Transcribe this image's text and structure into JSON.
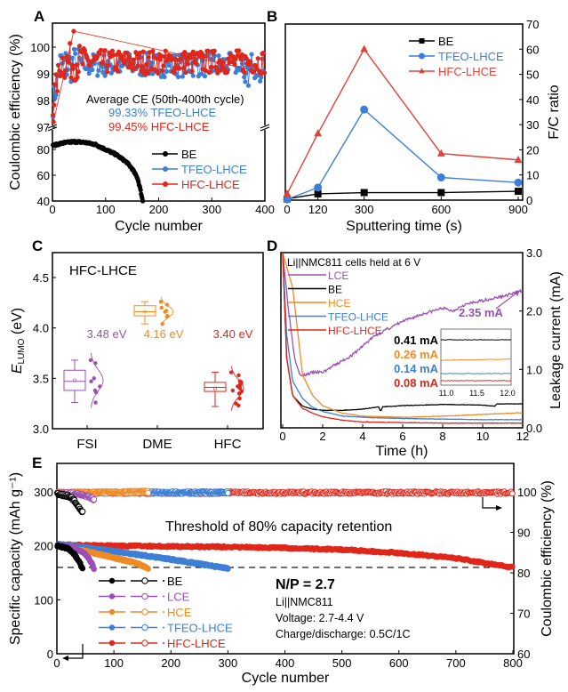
{
  "chart_data": [
    {
      "panel": "A",
      "type": "scatter",
      "xlabel": "Cycle number",
      "ylabel": "Coulombic efficiency (%)",
      "xlim": [
        0,
        400
      ],
      "xticks": [
        0,
        100,
        200,
        300,
        400
      ],
      "ylim_upper": [
        97,
        100.8
      ],
      "yticks_upper": [
        97,
        98,
        99,
        100
      ],
      "ylim_lower": [
        40,
        90
      ],
      "yticks_lower": [
        40,
        60,
        80
      ],
      "axis_break": true,
      "annotation_title": "Average CE  (50th-400th cycle)",
      "annotations": [
        {
          "text": "99.33%  TFEO-LHCE",
          "color": "#3d7fd6"
        },
        {
          "text": "99.45%  HFC-LHCE",
          "color": "#e0261a"
        }
      ],
      "legend": [
        "BE",
        "TFEO-LHCE",
        "HFC-LHCE"
      ],
      "legend_position": "lower-right",
      "series": [
        {
          "name": "BE",
          "color": "#000000",
          "description": "starts ~83%, rises to ~86% near cycle 40, declines to ~40% at cycle ~170",
          "x": [
            0,
            20,
            40,
            60,
            80,
            100,
            120,
            140,
            150,
            160,
            165,
            170
          ],
          "y": [
            83,
            85,
            86,
            85.5,
            84,
            80,
            76,
            70,
            65,
            58,
            50,
            40
          ]
        },
        {
          "name": "TFEO-LHCE",
          "color": "#3d7fd6",
          "description": "stabilizes near 99.3% after ~15 cycles",
          "average_ce": 99.33
        },
        {
          "name": "HFC-LHCE",
          "color": "#e0261a",
          "description": "stabilizes near 99.45% after ~15 cycles, max ~100.6 around cycle 40",
          "average_ce": 99.45
        }
      ]
    },
    {
      "panel": "B",
      "type": "line",
      "xlabel": "Sputtering time (s)",
      "ylabel": "F/C ratio",
      "xlim": [
        0,
        900
      ],
      "xticks": [
        0,
        120,
        300,
        600,
        900
      ],
      "ylim": [
        0,
        70
      ],
      "yticks": [
        0,
        10,
        20,
        30,
        40,
        50,
        60,
        70
      ],
      "legend_position": "top-right",
      "x": [
        0,
        120,
        300,
        600,
        900
      ],
      "series": [
        {
          "name": "BE",
          "color": "#000000",
          "marker": "square",
          "values": [
            0.5,
            2.5,
            3,
            3,
            3.5
          ]
        },
        {
          "name": "TFEO-LHCE",
          "color": "#3d7fd6",
          "marker": "circle",
          "values": [
            0.3,
            5,
            36,
            9,
            7
          ]
        },
        {
          "name": "HFC-LHCE",
          "color": "#e0423a",
          "marker": "triangle",
          "values": [
            2.5,
            26.5,
            60,
            18.5,
            16
          ]
        }
      ]
    },
    {
      "panel": "C",
      "type": "box",
      "title": "HFC-LHCE",
      "ylabel": "E_LUMO (eV)",
      "ylim": [
        3.0,
        4.75
      ],
      "yticks": [
        3.0,
        3.5,
        4.0,
        4.5
      ],
      "categories": [
        "FSI",
        "DME",
        "HFC"
      ],
      "series": [
        {
          "name": "FSI",
          "color": "#9b4fb5",
          "mean_label": "3.48 eV",
          "mean": 3.48,
          "min": 3.26,
          "q1": 3.38,
          "median": 3.47,
          "q3": 3.58,
          "max": 3.68,
          "points": [
            3.68,
            3.65,
            3.5,
            3.47,
            3.42,
            3.38,
            3.36,
            3.26
          ]
        },
        {
          "name": "DME",
          "color": "#f08a24",
          "mean_label": "4.16 eV",
          "mean": 4.16,
          "min": 4.04,
          "q1": 4.12,
          "median": 4.16,
          "q3": 4.22,
          "max": 4.26,
          "points": [
            4.26,
            4.23,
            4.2,
            4.17,
            4.16,
            4.12,
            4.11,
            4.04
          ]
        },
        {
          "name": "HFC",
          "color": "#e0261a",
          "mean_label": "3.40 eV",
          "mean": 3.4,
          "min": 3.22,
          "q1": 3.37,
          "median": 3.41,
          "q3": 3.46,
          "max": 3.56,
          "points": [
            3.56,
            3.53,
            3.47,
            3.46,
            3.45,
            3.44,
            3.42,
            3.41,
            3.4,
            3.38,
            3.37,
            3.35,
            3.3,
            3.25,
            3.23
          ]
        }
      ]
    },
    {
      "panel": "D",
      "type": "line",
      "xlabel": "Time (h)",
      "ylabel": "Leakage current (mA)",
      "xlim": [
        0,
        12
      ],
      "xticks": [
        0,
        2,
        4,
        6,
        8,
        10,
        12
      ],
      "ylim": [
        0,
        3.0
      ],
      "yticks": [
        0.0,
        1.0,
        2.0,
        3.0
      ],
      "annotation": "Li||NMC811 cells held at 6 V",
      "callout": {
        "text": "2.35 mA",
        "color": "#9b4fb5"
      },
      "legend_position": "top-left",
      "series": [
        {
          "name": "LCE",
          "color": "#9b4fb5",
          "x": [
            0,
            0.3,
            0.6,
            0.9,
            1.5,
            2,
            2.5,
            3,
            3.5,
            4,
            4.5,
            5,
            6,
            7,
            8,
            8.5,
            9,
            10,
            11,
            12
          ],
          "y": [
            3.0,
            2.0,
            1.2,
            0.88,
            0.95,
            0.95,
            1.05,
            1.15,
            1.25,
            1.4,
            1.55,
            1.65,
            1.82,
            1.95,
            2.05,
            2.0,
            2.1,
            2.18,
            2.25,
            2.35
          ]
        },
        {
          "name": "BE",
          "color": "#000000",
          "x": [
            0,
            0.2,
            0.5,
            1,
            1.5,
            2,
            3,
            4,
            4.8,
            4.9,
            5,
            6,
            8,
            10,
            10.6,
            10.7,
            12
          ],
          "y": [
            3.0,
            1.2,
            0.55,
            0.37,
            0.32,
            0.3,
            0.3,
            0.32,
            0.36,
            0.28,
            0.36,
            0.38,
            0.4,
            0.39,
            0.37,
            0.41,
            0.41
          ]
        },
        {
          "name": "HCE",
          "color": "#f08a24",
          "x": [
            0,
            0.5,
            0.8,
            1,
            1.5,
            2,
            3,
            4,
            6,
            8,
            10,
            12
          ],
          "y": [
            3.0,
            2.4,
            1.5,
            0.9,
            0.55,
            0.38,
            0.25,
            0.2,
            0.18,
            0.2,
            0.23,
            0.26
          ]
        },
        {
          "name": "TFEO-LHCE",
          "color": "#3d7fd6",
          "x": [
            0,
            0.2,
            0.5,
            1,
            1.5,
            2,
            3,
            4,
            6,
            8,
            10,
            12
          ],
          "y": [
            3.0,
            1.6,
            0.8,
            0.5,
            0.35,
            0.28,
            0.2,
            0.18,
            0.16,
            0.15,
            0.14,
            0.14
          ]
        },
        {
          "name": "HFC-LHCE",
          "color": "#e0261a",
          "x": [
            0,
            0.2,
            0.5,
            1,
            1.5,
            2,
            3,
            4,
            6,
            8,
            10,
            12
          ],
          "y": [
            3.0,
            1.2,
            0.55,
            0.33,
            0.25,
            0.19,
            0.13,
            0.1,
            0.09,
            0.08,
            0.08,
            0.08
          ]
        }
      ],
      "inset": {
        "xlim": [
          11.0,
          12.0
        ],
        "xticks": [
          11.0,
          11.5,
          12.0
        ],
        "labels": [
          {
            "text": "0.41 mA",
            "color": "#000000",
            "value": 0.41
          },
          {
            "text": "0.26 mA",
            "color": "#f08a24",
            "value": 0.26
          },
          {
            "text": "0.14 mA",
            "color": "#3d7fd6",
            "value": 0.14
          },
          {
            "text": "0.08 mA",
            "color": "#e0261a",
            "value": 0.08
          }
        ]
      }
    },
    {
      "panel": "E",
      "type": "scatter",
      "xlabel": "Cycle number",
      "ylabel": "Specific capacity (mAh g⁻¹)",
      "y2label": "Coulombic efficiency (%)",
      "xlim": [
        0,
        800
      ],
      "xticks": [
        0,
        100,
        200,
        300,
        400,
        500,
        600,
        700,
        800
      ],
      "ylim": [
        0,
        352
      ],
      "yticks": [
        0,
        100,
        200,
        300
      ],
      "y2lim": [
        60,
        104
      ],
      "y2ticks": [
        60,
        70,
        80,
        90,
        100
      ],
      "threshold_value": 160,
      "threshold_label": "Threshold of 80% capacity retention",
      "np_label": "N/P = 2.7",
      "conditions": [
        "Li||NMC811",
        "Voltage: 2.7-4.4 V",
        "Charge/discharge: 0.5C/1C"
      ],
      "legend_position": "lower-left",
      "series": [
        {
          "name": "BE",
          "color": "#000000",
          "capacity_end_cycle": 45,
          "capacity": {
            "x": [
              1,
              20,
              30,
              40,
              45
            ],
            "y": [
              200,
              195,
              185,
              170,
              157
            ]
          },
          "ce": {
            "x": [
              1,
              20,
              30,
              40,
              50
            ],
            "y": [
              99.5,
              99,
              98,
              96,
              94
            ]
          }
        },
        {
          "name": "LCE",
          "color": "#9b4fb5",
          "capacity_end_cycle": 65,
          "capacity": {
            "x": [
              1,
              30,
              50,
              60,
              65
            ],
            "y": [
              200,
              196,
              185,
              170,
              158
            ]
          },
          "ce": {
            "x": [
              1,
              40,
              60,
              65
            ],
            "y": [
              99.6,
              99.5,
              98.5,
              98
            ]
          }
        },
        {
          "name": "HCE",
          "color": "#f08a24",
          "capacity_end_cycle": 160,
          "capacity": {
            "x": [
              1,
              50,
              100,
              140,
              160
            ],
            "y": [
              200,
              190,
              178,
              168,
              158
            ]
          },
          "ce": {
            "x": [
              1,
              50,
              100,
              150,
              160
            ],
            "y": [
              99.8,
              99.8,
              99.8,
              100,
              100
            ]
          }
        },
        {
          "name": "TFEO-LHCE",
          "color": "#3d7fd6",
          "capacity_end_cycle": 300,
          "capacity": {
            "x": [
              1,
              100,
              200,
              300
            ],
            "y": [
              203,
              190,
              175,
              158
            ]
          },
          "ce": {
            "x": [
              1,
              100,
              200,
              300
            ],
            "y": [
              99.7,
              99.8,
              99.8,
              99.8
            ]
          }
        },
        {
          "name": "HFC-LHCE",
          "color": "#e0261a",
          "capacity_end_cycle": 800,
          "capacity": {
            "x": [
              1,
              100,
              200,
              300,
              400,
              500,
              600,
              700,
              800
            ],
            "y": [
              202,
              200,
              199,
              198,
              196,
              193,
              187,
              177,
              160
            ]
          },
          "ce": {
            "x": [
              1,
              100,
              200,
              300,
              400,
              500,
              600,
              700,
              800
            ],
            "y": [
              99.8,
              99.8,
              99.8,
              99.8,
              99.8,
              99.8,
              99.8,
              99.8,
              99.8
            ]
          }
        }
      ]
    }
  ],
  "panels": {
    "A": {
      "letter": "A"
    },
    "B": {
      "letter": "B"
    },
    "C": {
      "letter": "C"
    },
    "D": {
      "letter": "D"
    },
    "E": {
      "letter": "E"
    }
  }
}
